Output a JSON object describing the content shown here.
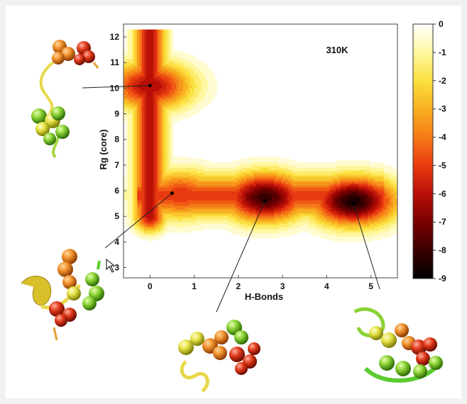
{
  "chart_data": {
    "type": "heatmap",
    "annotation": "310K",
    "xlabel": "H-Bonds",
    "ylabel": "Rg (core)",
    "xlim": [
      -0.6,
      5.6
    ],
    "ylim": [
      2.6,
      12.5
    ],
    "x_ticks": [
      0,
      1,
      2,
      3,
      4,
      5
    ],
    "y_ticks": [
      3,
      4,
      5,
      6,
      7,
      8,
      9,
      10,
      11,
      12
    ],
    "colorbar": {
      "range": [
        -9,
        0
      ],
      "ticks": [
        0,
        -1,
        -2,
        -3,
        -4,
        -5,
        -6,
        -7,
        -8,
        -9
      ],
      "colormap": [
        "#000000",
        "#3a0000",
        "#7a0000",
        "#b81008",
        "#e83a10",
        "#f57a18",
        "#f8b020",
        "#fbe040",
        "#fff7a0",
        "#ffffff"
      ]
    },
    "minima": [
      {
        "x": 0.0,
        "y": 10.1,
        "value": -6.5
      },
      {
        "x": 0.7,
        "y": 5.85,
        "value": -5.5
      },
      {
        "x": 2.6,
        "y": 5.75,
        "value": -8.3
      },
      {
        "x": 4.6,
        "y": 5.6,
        "value": -8.8
      }
    ],
    "structure_labels": [
      {
        "name": "extended-structure",
        "x": 0.0,
        "y": 10.1
      },
      {
        "name": "compact-structure-a",
        "x": 0.5,
        "y": 5.9
      },
      {
        "name": "compact-structure-b",
        "x": 2.6,
        "y": 5.6
      },
      {
        "name": "compact-structure-c",
        "x": 4.6,
        "y": 5.5
      }
    ]
  }
}
